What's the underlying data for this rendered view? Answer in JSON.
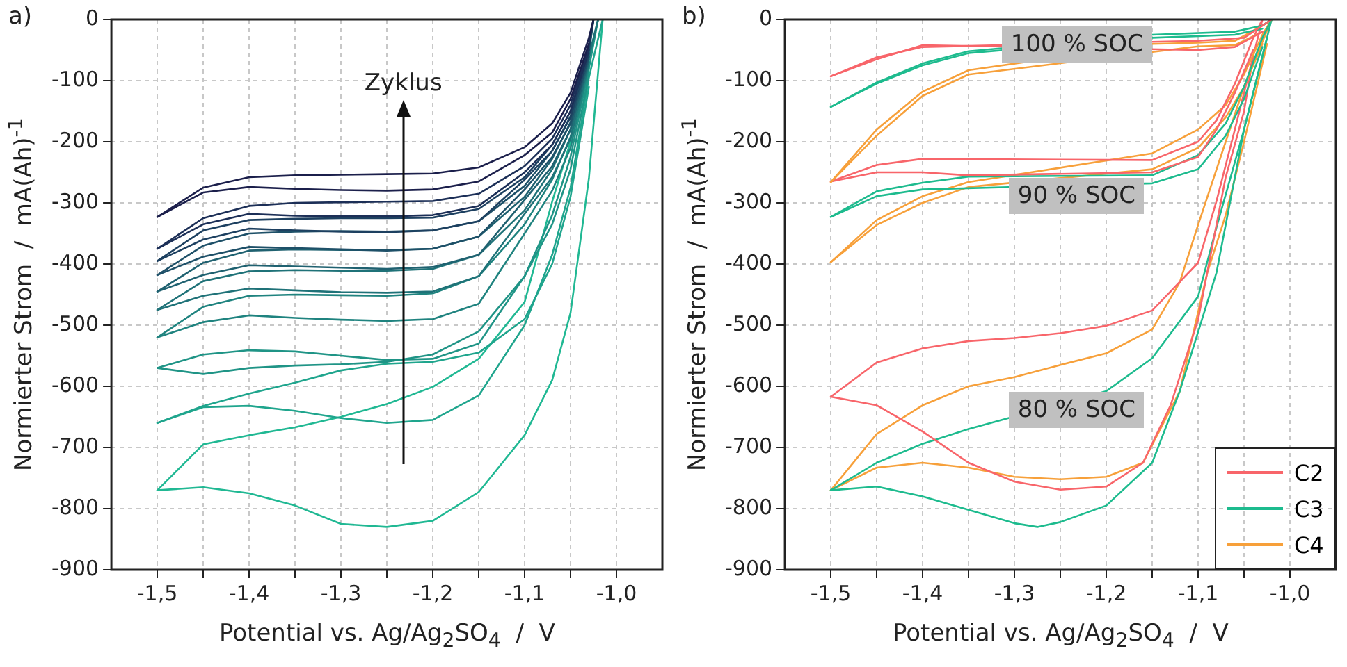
{
  "chart_data": [
    {
      "type": "line",
      "annotations": [
        "a)",
        "Zyklus"
      ],
      "xlabel": "Potential vs. Ag/Ag$_{2}$SO$_{4}$  /  V",
      "ylabel": "Normierter Strom  /  mA(Ah)$^{-1}$",
      "xlim": [
        -1.55,
        -0.95
      ],
      "ylim": [
        -900,
        0
      ],
      "xticks": [
        {
          "value": -1.5,
          "label": "-1,5"
        },
        {
          "value": -1.45,
          "label": null
        },
        {
          "value": -1.4,
          "label": "-1,4"
        },
        {
          "value": -1.35,
          "label": null
        },
        {
          "value": -1.3,
          "label": "-1,3"
        },
        {
          "value": -1.25,
          "label": null
        },
        {
          "value": -1.2,
          "label": "-1,2"
        },
        {
          "value": -1.15,
          "label": null
        },
        {
          "value": -1.1,
          "label": "-1,1"
        },
        {
          "value": -1.05,
          "label": null
        },
        {
          "value": -1.0,
          "label": "-1,0"
        }
      ],
      "yticks": [
        0,
        -100,
        -200,
        -300,
        -400,
        -500,
        -600,
        -700,
        -800,
        -900
      ],
      "grid": true,
      "series": [
        {
          "color": "#1b1f4b",
          "x": [
            -1.5,
            -1.45,
            -1.4,
            -1.35,
            -1.3,
            -1.25,
            -1.2,
            -1.15,
            -1.1,
            -1.07,
            -1.05,
            -1.03,
            -1.025
          ],
          "values": [
            -323,
            -275,
            -258,
            -255,
            -254,
            -253,
            -252,
            -242,
            -209,
            -170,
            -120,
            -30,
            0
          ]
        },
        {
          "color": "#1b1f4b",
          "x": [
            -1.03,
            -1.05,
            -1.07,
            -1.1,
            -1.15,
            -1.2,
            -1.25,
            -1.3,
            -1.35,
            -1.4,
            -1.45,
            -1.5
          ],
          "values": [
            -40,
            -130,
            -185,
            -222,
            -265,
            -278,
            -280,
            -279,
            -277,
            -274,
            -283,
            -323
          ]
        },
        {
          "color": "#1c2f57",
          "x": [
            -1.5,
            -1.45,
            -1.4,
            -1.35,
            -1.3,
            -1.25,
            -1.2,
            -1.15,
            -1.1,
            -1.07,
            -1.05,
            -1.03,
            -1.025
          ],
          "values": [
            -375,
            -325,
            -305,
            -300,
            -299,
            -298,
            -297,
            -285,
            -240,
            -195,
            -140,
            -40,
            0
          ]
        },
        {
          "color": "#1c2f57",
          "x": [
            -1.03,
            -1.05,
            -1.07,
            -1.1,
            -1.15,
            -1.2,
            -1.25,
            -1.3,
            -1.35,
            -1.4,
            -1.45,
            -1.5
          ],
          "values": [
            -50,
            -150,
            -205,
            -250,
            -305,
            -320,
            -322,
            -322,
            -321,
            -318,
            -335,
            -375
          ]
        },
        {
          "color": "#1d4060",
          "x": [
            -1.5,
            -1.45,
            -1.4,
            -1.35,
            -1.3,
            -1.25,
            -1.2,
            -1.15,
            -1.1,
            -1.07,
            -1.05,
            -1.03,
            -1.025
          ],
          "values": [
            -395,
            -345,
            -328,
            -326,
            -325,
            -325,
            -324,
            -310,
            -258,
            -205,
            -150,
            -45,
            0
          ]
        },
        {
          "color": "#1d4060",
          "x": [
            -1.03,
            -1.05,
            -1.07,
            -1.1,
            -1.15,
            -1.2,
            -1.25,
            -1.3,
            -1.35,
            -1.4,
            -1.45,
            -1.5
          ],
          "values": [
            -55,
            -160,
            -215,
            -262,
            -330,
            -345,
            -348,
            -347,
            -345,
            -342,
            -360,
            -395
          ]
        },
        {
          "color": "#1e5068",
          "x": [
            -1.5,
            -1.45,
            -1.4,
            -1.35,
            -1.3,
            -1.25,
            -1.2,
            -1.15,
            -1.1,
            -1.07,
            -1.05,
            -1.03,
            -1.025
          ],
          "values": [
            -418,
            -370,
            -350,
            -347,
            -346,
            -347,
            -345,
            -330,
            -272,
            -215,
            -158,
            -50,
            0
          ]
        },
        {
          "color": "#1e5068",
          "x": [
            -1.03,
            -1.05,
            -1.07,
            -1.1,
            -1.15,
            -1.2,
            -1.25,
            -1.3,
            -1.35,
            -1.4,
            -1.45,
            -1.5
          ],
          "values": [
            -60,
            -170,
            -225,
            -278,
            -355,
            -375,
            -378,
            -376,
            -374,
            -372,
            -388,
            -418
          ]
        },
        {
          "color": "#1f6170",
          "x": [
            -1.5,
            -1.45,
            -1.4,
            -1.35,
            -1.3,
            -1.25,
            -1.2,
            -1.15,
            -1.1,
            -1.07,
            -1.05,
            -1.03,
            -1.025
          ],
          "values": [
            -445,
            -398,
            -378,
            -376,
            -377,
            -377,
            -375,
            -355,
            -290,
            -228,
            -168,
            -55,
            0
          ]
        },
        {
          "color": "#1f6170",
          "x": [
            -1.03,
            -1.05,
            -1.07,
            -1.1,
            -1.15,
            -1.2,
            -1.25,
            -1.3,
            -1.35,
            -1.4,
            -1.45,
            -1.5
          ],
          "values": [
            -65,
            -180,
            -240,
            -295,
            -385,
            -405,
            -408,
            -406,
            -404,
            -402,
            -418,
            -445
          ]
        },
        {
          "color": "#1f7278",
          "x": [
            -1.5,
            -1.45,
            -1.4,
            -1.35,
            -1.3,
            -1.25,
            -1.2,
            -1.15,
            -1.1,
            -1.07,
            -1.05,
            -1.03,
            -1.02
          ],
          "values": [
            -475,
            -428,
            -412,
            -410,
            -411,
            -411,
            -408,
            -385,
            -312,
            -245,
            -180,
            -60,
            0
          ]
        },
        {
          "color": "#1f7278",
          "x": [
            -1.03,
            -1.05,
            -1.07,
            -1.1,
            -1.15,
            -1.2,
            -1.25,
            -1.3,
            -1.35,
            -1.4,
            -1.45,
            -1.5
          ],
          "values": [
            -70,
            -195,
            -258,
            -318,
            -420,
            -445,
            -447,
            -446,
            -443,
            -440,
            -452,
            -475
          ]
        },
        {
          "color": "#1f837f",
          "x": [
            -1.5,
            -1.45,
            -1.4,
            -1.35,
            -1.3,
            -1.25,
            -1.2,
            -1.15,
            -1.1,
            -1.07,
            -1.05,
            -1.03,
            -1.02
          ],
          "values": [
            -520,
            -470,
            -452,
            -450,
            -451,
            -452,
            -448,
            -420,
            -335,
            -262,
            -192,
            -65,
            0
          ]
        },
        {
          "color": "#1f837f",
          "x": [
            -1.03,
            -1.05,
            -1.07,
            -1.1,
            -1.15,
            -1.2,
            -1.25,
            -1.3,
            -1.35,
            -1.4,
            -1.45,
            -1.5
          ],
          "values": [
            -75,
            -210,
            -280,
            -350,
            -465,
            -490,
            -493,
            -491,
            -488,
            -484,
            -495,
            -520
          ]
        },
        {
          "color": "#1f9486",
          "x": [
            -1.5,
            -1.45,
            -1.4,
            -1.35,
            -1.3,
            -1.25,
            -1.2,
            -1.15,
            -1.1,
            -1.07,
            -1.05,
            -1.03,
            -1.02
          ],
          "values": [
            -570,
            -548,
            -541,
            -543,
            -550,
            -557,
            -555,
            -530,
            -420,
            -320,
            -225,
            -80,
            0
          ]
        },
        {
          "color": "#1f9486",
          "x": [
            -1.03,
            -1.05,
            -1.07,
            -1.1,
            -1.15,
            -1.2,
            -1.25,
            -1.3,
            -1.35,
            -1.4,
            -1.45,
            -1.5
          ],
          "values": [
            -90,
            -245,
            -335,
            -420,
            -510,
            -548,
            -560,
            -564,
            -566,
            -570,
            -580,
            -570
          ]
        },
        {
          "color": "#1fa58d",
          "x": [
            -1.5,
            -1.45,
            -1.4,
            -1.35,
            -1.3,
            -1.25,
            -1.2,
            -1.15,
            -1.1,
            -1.07,
            -1.05,
            -1.03,
            -1.015
          ],
          "values": [
            -660,
            -634,
            -632,
            -640,
            -652,
            -660,
            -655,
            -615,
            -500,
            -385,
            -275,
            -95,
            0
          ]
        },
        {
          "color": "#1fa58d",
          "x": [
            -1.03,
            -1.05,
            -1.07,
            -1.1,
            -1.15,
            -1.2,
            -1.25,
            -1.3,
            -1.35,
            -1.4,
            -1.45,
            -1.5
          ],
          "values": [
            -110,
            -290,
            -400,
            -490,
            -545,
            -560,
            -563,
            -574,
            -594,
            -612,
            -632,
            -660
          ]
        },
        {
          "color": "#20b893",
          "x": [
            -1.5,
            -1.45,
            -1.4,
            -1.35,
            -1.3,
            -1.25,
            -1.2,
            -1.15,
            -1.1,
            -1.07,
            -1.05,
            -1.03,
            -1.015
          ],
          "values": [
            -770,
            -765,
            -775,
            -795,
            -825,
            -830,
            -820,
            -773,
            -680,
            -590,
            -480,
            -260,
            0
          ]
        },
        {
          "color": "#20b893",
          "x": [
            -1.03,
            -1.05,
            -1.07,
            -1.1,
            -1.15,
            -1.2,
            -1.25,
            -1.3,
            -1.35,
            -1.4,
            -1.45,
            -1.5
          ],
          "values": [
            -80,
            -200,
            -298,
            -462,
            -555,
            -601,
            -629,
            -650,
            -667,
            -680,
            -695,
            -770
          ]
        }
      ]
    },
    {
      "type": "line",
      "annotations": [
        "b)",
        "100 % SOC",
        "90 % SOC",
        "80 % SOC"
      ],
      "xlabel": "Potential vs. Ag/Ag$_{2}$SO$_{4}$  /  V",
      "ylabel": "Normierter Strom  /  mA(Ah)$^{-1}$",
      "xlim": [
        -1.55,
        -0.95
      ],
      "ylim": [
        -900,
        0
      ],
      "xticks": [
        {
          "value": -1.5,
          "label": "-1,5"
        },
        {
          "value": -1.45,
          "label": null
        },
        {
          "value": -1.4,
          "label": "-1,4"
        },
        {
          "value": -1.35,
          "label": null
        },
        {
          "value": -1.3,
          "label": "-1,3"
        },
        {
          "value": -1.25,
          "label": null
        },
        {
          "value": -1.2,
          "label": "-1,2"
        },
        {
          "value": -1.15,
          "label": null
        },
        {
          "value": -1.1,
          "label": "-1,1"
        },
        {
          "value": -1.05,
          "label": null
        },
        {
          "value": -1.0,
          "label": "-1,0"
        }
      ],
      "yticks": [
        0,
        -100,
        -200,
        -300,
        -400,
        -500,
        -600,
        -700,
        -800,
        -900
      ],
      "grid": true,
      "legend": "bottom right",
      "series": [
        {
          "name": "C2",
          "color": "#f8656a",
          "x": [
            -1.5,
            -1.45,
            -1.4,
            -1.3,
            -1.2,
            -1.1,
            -1.05,
            -1.03,
            -1.02
          ],
          "values": [
            -93,
            -62,
            -45,
            null,
            null,
            -35,
            -30,
            -10,
            0
          ]
        },
        {
          "color": "#f8656a",
          "x": [
            -1.03,
            -1.06,
            -1.1,
            -1.2,
            -1.3,
            -1.4,
            -1.45,
            -1.5
          ],
          "values": [
            -20,
            -45,
            -50,
            null,
            null,
            -42,
            -65,
            -93
          ]
        },
        {
          "name": "C3",
          "color": "#1dbb8e",
          "x": [
            -1.5,
            -1.45,
            -1.4,
            -1.35,
            -1.3,
            -1.25,
            -1.2,
            -1.15,
            -1.06,
            -1.03,
            -1.02
          ],
          "values": [
            -143,
            -103,
            -72,
            -52,
            null,
            null,
            null,
            -25,
            -20,
            -10,
            0
          ]
        },
        {
          "color": "#1dbb8e",
          "x": [
            -1.03,
            -1.06,
            -1.15,
            -1.2,
            -1.3,
            -1.35,
            -1.4,
            -1.45,
            -1.5
          ],
          "values": [
            -15,
            -25,
            -30,
            null,
            null,
            -55,
            -75,
            -105,
            -143
          ]
        },
        {
          "name": "C4",
          "color": "#f7a03a",
          "x": [
            -1.5,
            -1.45,
            -1.4,
            -1.35,
            -1.3,
            -1.25,
            -1.2,
            -1.15,
            -1.1,
            -1.06,
            -1.03,
            -1.02
          ],
          "values": [
            -266,
            -180,
            -118,
            -83,
            null,
            null,
            null,
            -40,
            -38,
            -35,
            -10,
            0
          ]
        },
        {
          "color": "#f7a03a",
          "x": [
            -1.03,
            -1.06,
            -1.1,
            -1.2,
            -1.3,
            -1.35,
            -1.4,
            -1.45,
            -1.5
          ],
          "values": [
            -20,
            -42,
            -44,
            null,
            null,
            -90,
            -125,
            -190,
            -266
          ]
        },
        {
          "color": "#f8656a",
          "x": [
            -1.5,
            -1.45,
            -1.4,
            -1.3,
            -1.2,
            -1.15,
            -1.1,
            -1.08,
            -1.06,
            -1.04,
            -1.03
          ],
          "values": [
            -265,
            -238,
            -228,
            null,
            null,
            -230,
            -200,
            -165,
            -105,
            -30,
            0
          ]
        },
        {
          "color": "#f8656a",
          "x": [
            -1.04,
            -1.06,
            -1.08,
            -1.1,
            -1.15,
            -1.2,
            -1.3,
            -1.35,
            -1.4,
            -1.45,
            -1.5
          ],
          "values": [
            -50,
            -120,
            -180,
            -225,
            -250,
            null,
            null,
            -255,
            -250,
            -250,
            -265
          ]
        },
        {
          "color": "#1dbb8e",
          "x": [
            -1.5,
            -1.45,
            -1.4,
            -1.35,
            -1.3,
            -1.2,
            -1.15,
            -1.1,
            -1.07,
            -1.05,
            -1.03,
            -1.02
          ],
          "values": [
            -323,
            -281,
            -267,
            -257,
            null,
            null,
            -255,
            -222,
            -170,
            -110,
            -30,
            0
          ]
        },
        {
          "color": "#1dbb8e",
          "x": [
            -1.03,
            -1.05,
            -1.07,
            -1.1,
            -1.15,
            -1.2,
            -1.3,
            -1.4,
            -1.45,
            -1.5
          ],
          "values": [
            -45,
            -130,
            -190,
            -245,
            -268,
            null,
            null,
            -278,
            -289,
            -323
          ]
        },
        {
          "color": "#f7a03a",
          "x": [
            -1.5,
            -1.45,
            -1.4,
            -1.35,
            -1.3,
            -1.25,
            -1.2,
            -1.15,
            -1.1,
            -1.07,
            -1.05,
            -1.03,
            -1.02
          ],
          "values": [
            -397,
            -328,
            -289,
            -266,
            null,
            null,
            null,
            -219,
            -180,
            -140,
            -90,
            -25,
            0
          ]
        },
        {
          "color": "#f7a03a",
          "x": [
            -1.03,
            -1.05,
            -1.07,
            -1.1,
            -1.15,
            -1.2,
            -1.3,
            -1.35,
            -1.4,
            -1.45,
            -1.5
          ],
          "values": [
            -40,
            -110,
            -160,
            -210,
            -245,
            null,
            null,
            -274,
            -300,
            -336,
            -397
          ]
        },
        {
          "color": "#f8656a",
          "x": [
            -1.5,
            -1.45,
            -1.4,
            -1.35,
            -1.3,
            -1.25,
            -1.2,
            -1.15,
            -1.1,
            -1.08,
            -1.06,
            -1.03
          ],
          "values": [
            -617,
            -561,
            -538,
            -526,
            -521,
            -513,
            -501,
            -476,
            -398,
            -297,
            -180,
            0
          ]
        },
        {
          "color": "#f8656a",
          "x": [
            -1.04,
            -1.05,
            -1.07,
            -1.1,
            -1.13,
            -1.16,
            -1.2,
            -1.25,
            -1.3,
            -1.35,
            -1.4,
            -1.45,
            -1.5
          ],
          "values": [
            -60,
            -150,
            -258,
            -491,
            -631,
            -725,
            -764,
            -769,
            -756,
            -725,
            -674,
            -631,
            -617
          ]
        },
        {
          "color": "#1dbb8e",
          "x": [
            -1.5,
            -1.45,
            -1.4,
            -1.35,
            -1.3,
            -1.25,
            -1.2,
            -1.15,
            -1.1,
            -1.08,
            -1.05,
            -1.02
          ],
          "values": [
            -770,
            -725,
            -694,
            -670,
            null,
            null,
            -608,
            -554,
            -453,
            -340,
            -180,
            0
          ]
        },
        {
          "color": "#1dbb8e",
          "x": [
            -1.025,
            -1.05,
            -1.08,
            -1.12,
            -1.15,
            -1.2,
            -1.25,
            -1.275,
            -1.3,
            -1.35,
            -1.4,
            -1.45,
            -1.5
          ],
          "values": [
            -30,
            -180,
            -414,
            -608,
            -725,
            -795,
            -822,
            -830,
            -824,
            -802,
            -780,
            -764,
            -770
          ]
        },
        {
          "color": "#f7a03a",
          "x": [
            -1.5,
            -1.45,
            -1.4,
            -1.35,
            -1.3,
            -1.25,
            -1.2,
            -1.15,
            -1.12,
            -1.1,
            -1.07,
            -1.05,
            -1.02
          ],
          "values": [
            -770,
            -678,
            -631,
            -600,
            -585,
            -565,
            -546,
            -507,
            -430,
            -336,
            -200,
            -110,
            0
          ]
        },
        {
          "color": "#f7a03a",
          "x": [
            -1.025,
            -1.05,
            -1.07,
            -1.09,
            -1.12,
            -1.16,
            -1.2,
            -1.25,
            -1.3,
            -1.35,
            -1.4,
            -1.45,
            -1.5
          ],
          "values": [
            -40,
            -200,
            -320,
            -414,
            -608,
            -725,
            -748,
            -752,
            -748,
            -733,
            -725,
            -733,
            -770
          ]
        }
      ]
    }
  ]
}
